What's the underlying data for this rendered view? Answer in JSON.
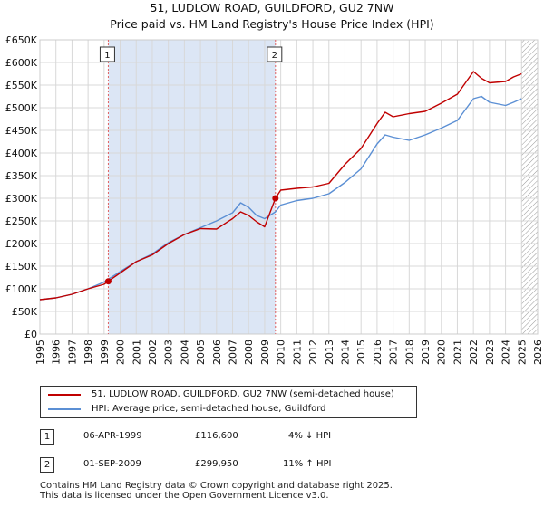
{
  "title_line1": "51, LUDLOW ROAD, GUILDFORD, GU2 7NW",
  "title_line2": "Price paid vs. HM Land Registry's House Price Index (HPI)",
  "legend": [
    {
      "label": "51, LUDLOW ROAD, GUILDFORD, GU2 7NW (semi-detached house)",
      "color": "#c00000"
    },
    {
      "label": "HPI: Average price, semi-detached house, Guildford",
      "color": "#5b8fd4"
    }
  ],
  "transactions": [
    {
      "num": "1",
      "date": "06-APR-1999",
      "price": "£116,600",
      "hpi": "4% ↓ HPI"
    },
    {
      "num": "2",
      "date": "01-SEP-2009",
      "price": "£299,950",
      "hpi": "11% ↑ HPI"
    }
  ],
  "footer_line1": "Contains HM Land Registry data © Crown copyright and database right 2025.",
  "footer_line2": "This data is licensed under the Open Government Licence v3.0.",
  "chart_data": {
    "type": "line",
    "title": "51, LUDLOW ROAD, GUILDFORD, GU2 7NW — Price paid vs. HM Land Registry's House Price Index (HPI)",
    "xlim": [
      1995,
      2026
    ],
    "ylim": [
      0,
      650000
    ],
    "x_ticks": [
      1995,
      1996,
      1997,
      1998,
      1999,
      2000,
      2001,
      2002,
      2003,
      2004,
      2005,
      2006,
      2007,
      2008,
      2009,
      2010,
      2011,
      2012,
      2013,
      2014,
      2015,
      2016,
      2017,
      2018,
      2019,
      2020,
      2021,
      2022,
      2023,
      2024,
      2025,
      2026
    ],
    "y_ticks": [
      0,
      50000,
      100000,
      150000,
      200000,
      250000,
      300000,
      350000,
      400000,
      450000,
      500000,
      550000,
      600000,
      650000
    ],
    "y_tick_labels": [
      "£0",
      "£50K",
      "£100K",
      "£150K",
      "£200K",
      "£250K",
      "£300K",
      "£350K",
      "£400K",
      "£450K",
      "£500K",
      "£550K",
      "£600K",
      "£650K"
    ],
    "grid": true,
    "shaded_region": [
      1999.26,
      2009.67
    ],
    "hatched_region_start": 2025.0,
    "series": [
      {
        "name": "51, LUDLOW ROAD, GUILDFORD, GU2 7NW (semi-detached house)",
        "color": "#c00000",
        "x": [
          1995,
          1996,
          1997,
          1998,
          1999,
          1999.26,
          2000,
          2001,
          2002,
          2003,
          2004,
          2005,
          2006,
          2007,
          2007.5,
          2008,
          2008.5,
          2009,
          2009.67,
          2010,
          2011,
          2012,
          2013,
          2014,
          2015,
          2016,
          2016.5,
          2017,
          2018,
          2019,
          2020,
          2021,
          2022,
          2022.5,
          2023,
          2024,
          2024.5,
          2025
        ],
        "y": [
          76000,
          80000,
          88000,
          100000,
          110000,
          116600,
          135000,
          160000,
          175000,
          200000,
          220000,
          233000,
          232000,
          255000,
          270000,
          262000,
          248000,
          237000,
          299950,
          318000,
          322000,
          325000,
          333000,
          375000,
          410000,
          465000,
          490000,
          480000,
          487000,
          492000,
          510000,
          530000,
          580000,
          565000,
          555000,
          558000,
          568000,
          575000
        ]
      },
      {
        "name": "HPI: Average price, semi-detached house, Guildford",
        "color": "#5b8fd4",
        "x": [
          1995,
          1996,
          1997,
          1998,
          1999,
          1999.26,
          2000,
          2001,
          2002,
          2003,
          2004,
          2005,
          2006,
          2007,
          2007.5,
          2008,
          2008.5,
          2009,
          2009.67,
          2010,
          2011,
          2012,
          2013,
          2014,
          2015,
          2016,
          2016.5,
          2017,
          2018,
          2019,
          2020,
          2021,
          2022,
          2022.5,
          2023,
          2024,
          2024.5,
          2025
        ],
        "y": [
          76000,
          80000,
          88000,
          100000,
          115000,
          121000,
          138000,
          160000,
          177000,
          202000,
          220000,
          235000,
          250000,
          268000,
          290000,
          280000,
          262000,
          255000,
          270000,
          285000,
          295000,
          300000,
          310000,
          335000,
          365000,
          420000,
          440000,
          435000,
          428000,
          440000,
          455000,
          472000,
          520000,
          525000,
          512000,
          505000,
          512000,
          520000
        ]
      }
    ],
    "annotations": [
      {
        "label": "1",
        "x": 1999.26,
        "y": 116600
      },
      {
        "label": "2",
        "x": 2009.67,
        "y": 299950
      }
    ]
  }
}
